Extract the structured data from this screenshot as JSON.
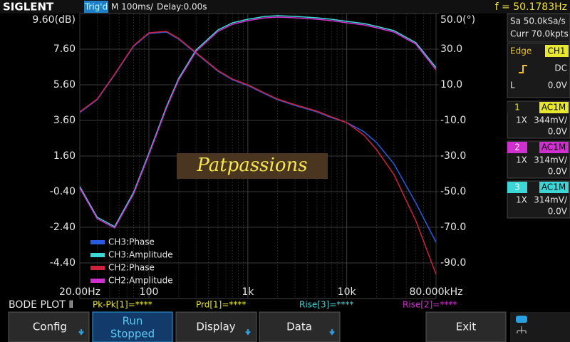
{
  "header": {
    "brand": "SIGLENT",
    "trigger": "Trig'd",
    "timebase": "M 100ms/",
    "delay": "Delay:0.00s",
    "frequency": "f = 50.1783Hz"
  },
  "acquisition": {
    "sample_rate": "Sa 50.0kSa/s",
    "memory": "Curr 70.0kpts"
  },
  "trigger_panel": {
    "type": "Edge",
    "source": "CH1",
    "coupling": "DC",
    "level_label": "L",
    "level": "0.0V"
  },
  "channels": [
    {
      "number": "1",
      "coupling": "AC1M",
      "probe": "1X",
      "scale": "344mV/",
      "offset": "0.0V",
      "color": "#e8e830"
    },
    {
      "number": "2",
      "coupling": "AC1M",
      "probe": "1X",
      "scale": "314mV/",
      "offset": "0.0V",
      "color": "#d030d0"
    },
    {
      "number": "3",
      "coupling": "AC1M",
      "probe": "1X",
      "scale": "314mV/",
      "offset": "0.0V",
      "color": "#3dd6d6"
    }
  ],
  "chart_data": {
    "type": "line",
    "xscale": "log",
    "grid": true,
    "legend": "bottom-left",
    "x": [
      20,
      30,
      45,
      70,
      100,
      150,
      200,
      300,
      500,
      700,
      1000,
      1500,
      2000,
      3000,
      5000,
      7000,
      10000,
      15000,
      20000,
      30000,
      50000,
      80000
    ],
    "xlim": [
      20,
      80000
    ],
    "xticks": [
      {
        "value": 20,
        "label": "20.00Hz"
      },
      100,
      {
        "value": 1000,
        "label": "1k"
      },
      {
        "value": 10000,
        "label": "10k"
      },
      {
        "value": 80000,
        "label": "80.000kHz"
      }
    ],
    "ylim": [
      -6.4,
      9.6
    ],
    "yticks": [
      {
        "value": 9.6,
        "label": "9.60(dB)"
      },
      {
        "value": 7.6,
        "label": "7.60"
      },
      {
        "value": 5.6,
        "label": "5.60"
      },
      {
        "value": 3.6,
        "label": "3.60"
      },
      {
        "value": 1.6,
        "label": "1.60"
      },
      {
        "value": -0.4,
        "label": "-0.40"
      },
      {
        "value": -2.4,
        "label": "-2.40"
      },
      {
        "value": -4.4,
        "label": "-4.40"
      }
    ],
    "y2lim": [
      -110,
      50
    ],
    "y2ticks": [
      {
        "value": 50,
        "label": "50.0(°)"
      },
      {
        "value": 30,
        "label": "30.0"
      },
      {
        "value": 10,
        "label": "10.0"
      },
      {
        "value": -10,
        "label": "-10.0"
      },
      {
        "value": -30,
        "label": "-30.0"
      },
      {
        "value": -50,
        "label": "-50.0"
      },
      {
        "value": -70,
        "label": "-70.0"
      },
      {
        "value": -90,
        "label": "-90.0"
      }
    ],
    "series": [
      {
        "name": "CH3:Phase",
        "color": "#2a5ae0",
        "axis": "y2",
        "values": [
          -5.6,
          1.6,
          15.6,
          31.6,
          38.8,
          39.6,
          35.6,
          27.6,
          17.6,
          12.8,
          9.6,
          4.8,
          1.6,
          -1.6,
          -5.2,
          -8.4,
          -11.2,
          -16.4,
          -22.4,
          -34.4,
          -56.4,
          -78.4
        ]
      },
      {
        "name": "CH3:Amplitude",
        "color": "#3dd6d6",
        "values": [
          -0.12,
          -1.84,
          -2.36,
          -0.44,
          1.76,
          4.36,
          5.96,
          7.56,
          8.68,
          9.08,
          9.28,
          9.44,
          9.48,
          9.44,
          9.36,
          9.28,
          9.16,
          9.04,
          8.88,
          8.64,
          7.96,
          6.56
        ]
      },
      {
        "name": "CH2:Phase",
        "color": "#d0203a",
        "axis": "y2",
        "values": [
          -5.2,
          2.0,
          16.0,
          32.0,
          39.2,
          40.0,
          36.0,
          28.0,
          18.0,
          13.2,
          10.0,
          5.2,
          2.0,
          -1.2,
          -4.8,
          -8.0,
          -11.2,
          -18.4,
          -26.4,
          -40.4,
          -66.4,
          -96.4
        ]
      },
      {
        "name": "CH2:Amplitude",
        "color": "#d030d0",
        "values": [
          -0.2,
          -1.92,
          -2.44,
          -0.52,
          1.68,
          4.28,
          5.88,
          7.48,
          8.6,
          9.0,
          9.2,
          9.36,
          9.4,
          9.36,
          9.28,
          9.2,
          9.08,
          8.96,
          8.8,
          8.56,
          7.88,
          6.44
        ]
      }
    ]
  },
  "watermark": "Patpassions",
  "mode": "BODE PLOT Ⅱ",
  "measurements": [
    {
      "text": "Pk-Pk[1]=****",
      "color": "#e8e830"
    },
    {
      "text": "Prd[1]=****",
      "color": "#e8e830"
    },
    {
      "text": "Rise[3]=****",
      "color": "#3dd6d6"
    },
    {
      "text": "Rise[2]=****",
      "color": "#d030d0"
    }
  ],
  "buttons": [
    [
      "Config"
    ],
    [
      "Run",
      "Stopped"
    ],
    [
      "Display"
    ],
    [
      "Data"
    ],
    [
      "Exit"
    ]
  ]
}
